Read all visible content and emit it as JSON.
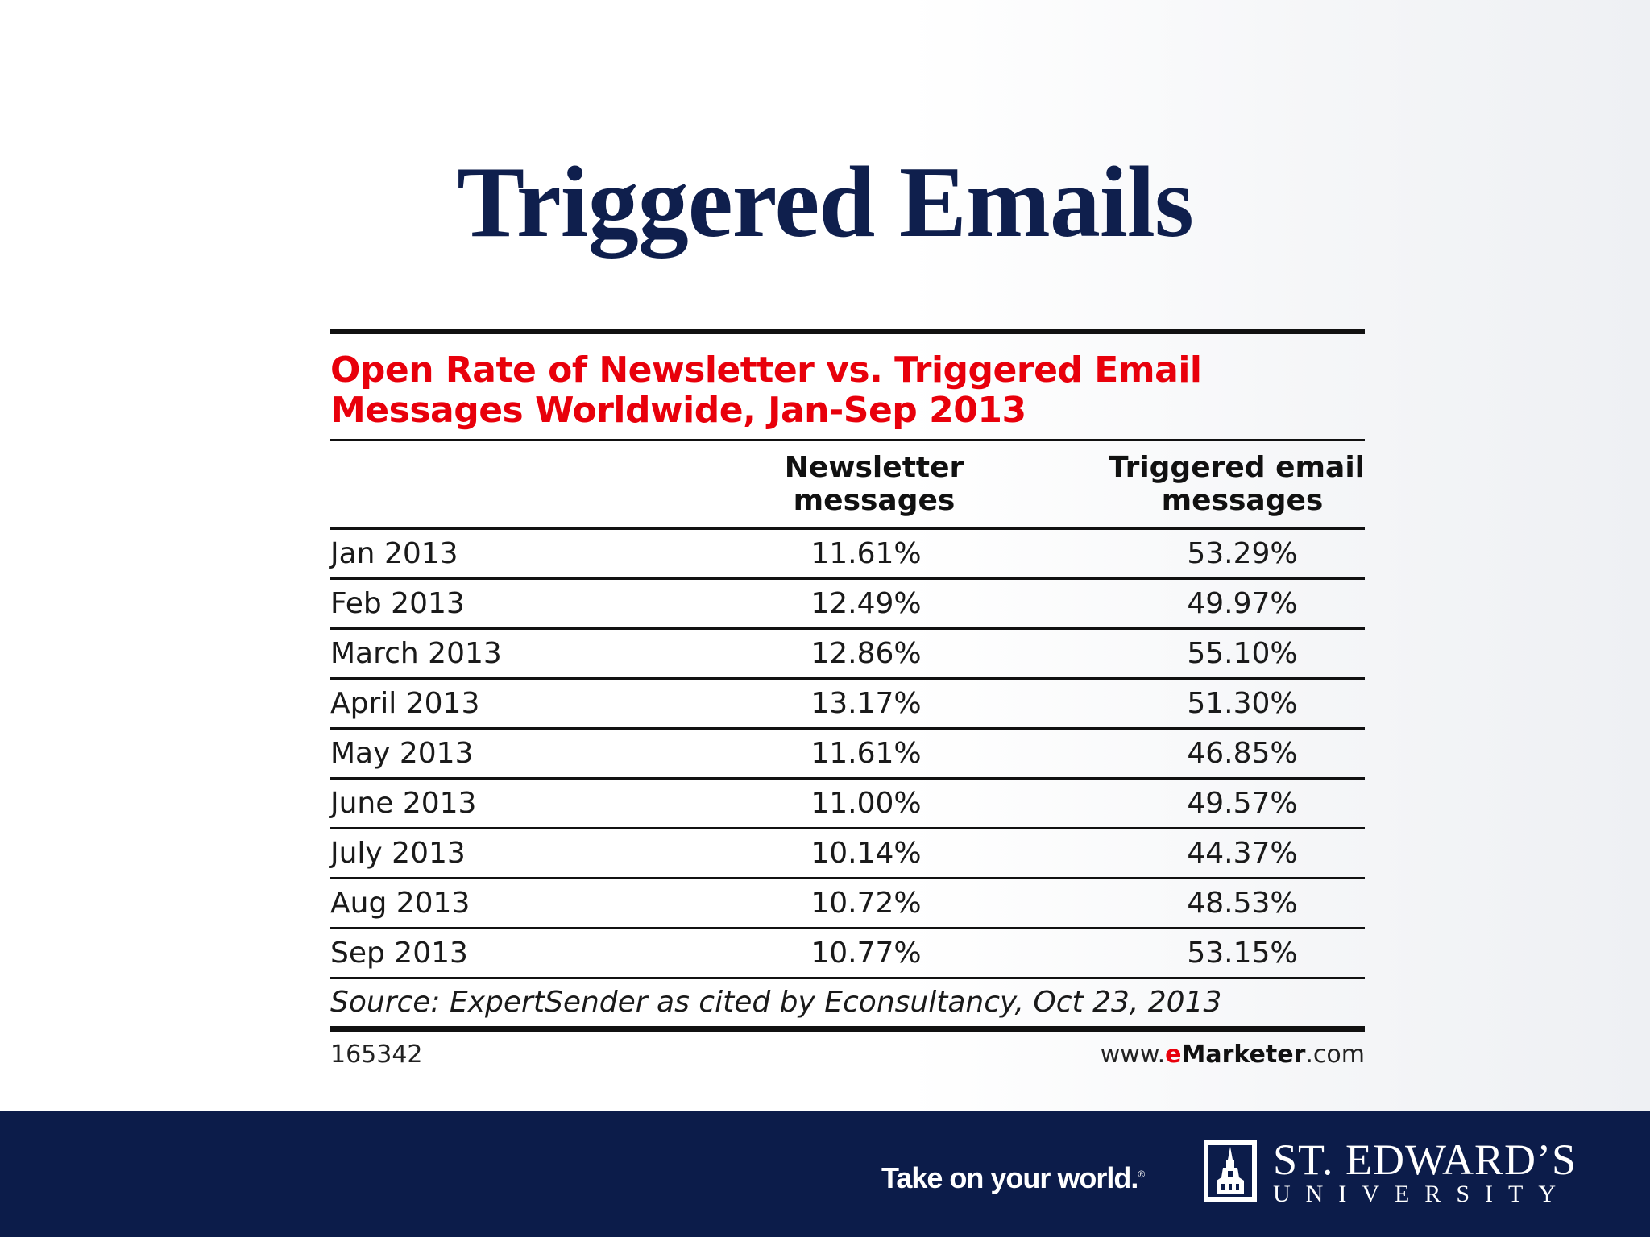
{
  "slide": {
    "title": "Triggered Emails"
  },
  "figure": {
    "title_line1": "Open Rate of Newsletter vs. Triggered Email",
    "title_line2": "Messages Worldwide, Jan-Sep 2013",
    "columns": {
      "newsletter_line1": "Newsletter",
      "newsletter_line2": "messages",
      "triggered_line1": "Triggered email",
      "triggered_line2": "messages"
    },
    "rows": [
      {
        "label": "Jan 2013",
        "newsletter": "11.61%",
        "triggered": "53.29%"
      },
      {
        "label": "Feb 2013",
        "newsletter": "12.49%",
        "triggered": "49.97%"
      },
      {
        "label": "March 2013",
        "newsletter": "12.86%",
        "triggered": "55.10%"
      },
      {
        "label": "April 2013",
        "newsletter": "13.17%",
        "triggered": "51.30%"
      },
      {
        "label": "May 2013",
        "newsletter": "11.61%",
        "triggered": "46.85%"
      },
      {
        "label": "June 2013",
        "newsletter": "11.00%",
        "triggered": "49.57%"
      },
      {
        "label": "July 2013",
        "newsletter": "10.14%",
        "triggered": "44.37%"
      },
      {
        "label": "Aug 2013",
        "newsletter": "10.72%",
        "triggered": "48.53%"
      },
      {
        "label": "Sep 2013",
        "newsletter": "10.77%",
        "triggered": "53.15%"
      }
    ],
    "source": "Source: ExpertSender as cited by Econsultancy, Oct 23, 2013",
    "chart_id": "165342",
    "site_prefix": "www.",
    "site_e": "e",
    "site_marketer": "Marketer",
    "site_suffix": ".com"
  },
  "footer": {
    "tagline": "Take on your world.",
    "tagline_mark": "®",
    "university_name": "ST. EDWARD’S",
    "university_sub": "UNIVERSITY",
    "logo_icon": "tower-icon"
  },
  "colors": {
    "title": "#0f1f4d",
    "figure_title": "#e8000b",
    "band": "#0c1c4a"
  }
}
